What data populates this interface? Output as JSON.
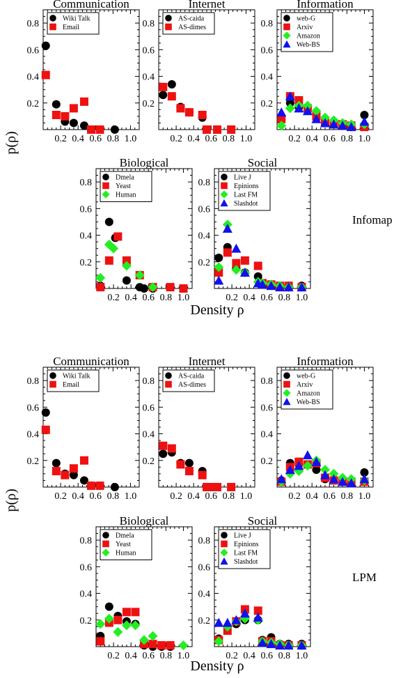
{
  "figure": {
    "y_axis_label": "p(ρ)",
    "x_axis_label": "Density ρ",
    "method_labels": [
      "Infomap",
      "LPM"
    ]
  },
  "colors": {
    "black": "#000000",
    "red": "#ee1111",
    "green": "#22ee22",
    "blue": "#1111ee"
  },
  "chart_data": [
    {
      "type": "scatter",
      "method": "Infomap",
      "title": "Communication",
      "xlim": [
        0,
        1.1
      ],
      "ylim": [
        0,
        0.9
      ],
      "x_ticks": [
        0.2,
        0.4,
        0.6,
        0.8,
        1.0
      ],
      "y_ticks": [
        0.2,
        0.4,
        0.6,
        0.8
      ],
      "series": [
        {
          "name": "Wiki Talk",
          "marker": "circle",
          "color": "#000000",
          "x": [
            0.03,
            0.15,
            0.25,
            0.35,
            0.47,
            0.55,
            0.65,
            0.82
          ],
          "y": [
            0.63,
            0.19,
            0.06,
            0.05,
            0.03,
            0.0,
            0.0,
            0.0
          ]
        },
        {
          "name": "Email",
          "marker": "square",
          "color": "#ee1111",
          "x": [
            0.03,
            0.15,
            0.25,
            0.35,
            0.47,
            0.55,
            0.65
          ],
          "y": [
            0.41,
            0.11,
            0.1,
            0.16,
            0.21,
            0.0,
            0.0
          ]
        }
      ]
    },
    {
      "type": "scatter",
      "method": "Infomap",
      "title": "Internet",
      "xlim": [
        0,
        1.1
      ],
      "ylim": [
        0,
        0.9
      ],
      "x_ticks": [
        0.2,
        0.4,
        0.6,
        0.8,
        1.0
      ],
      "y_ticks": [
        0.2,
        0.4,
        0.6,
        0.8
      ],
      "series": [
        {
          "name": "AS-caida",
          "marker": "circle",
          "color": "#000000",
          "x": [
            0.05,
            0.15,
            0.25,
            0.35,
            0.5
          ],
          "y": [
            0.26,
            0.34,
            0.17,
            0.13,
            0.09
          ]
        },
        {
          "name": "AS-dimes",
          "marker": "square",
          "color": "#ee1111",
          "x": [
            0.05,
            0.15,
            0.25,
            0.35,
            0.5,
            0.55,
            0.67,
            0.83
          ],
          "y": [
            0.32,
            0.25,
            0.16,
            0.13,
            0.11,
            0.0,
            0.0,
            0.0
          ]
        }
      ]
    },
    {
      "type": "scatter",
      "method": "Infomap",
      "title": "Information",
      "xlim": [
        0,
        1.1
      ],
      "ylim": [
        0,
        0.9
      ],
      "x_ticks": [
        0.2,
        0.4,
        0.6,
        0.8,
        1.0
      ],
      "y_ticks": [
        0.2,
        0.4,
        0.6,
        0.8
      ],
      "series": [
        {
          "name": "web-G",
          "marker": "circle",
          "color": "#000000",
          "x": [
            0.05,
            0.15,
            0.25,
            0.35,
            0.45,
            0.55,
            0.65,
            0.75,
            0.85,
            1.0
          ],
          "y": [
            0.1,
            0.2,
            0.17,
            0.16,
            0.12,
            0.07,
            0.05,
            0.03,
            0.02,
            0.11
          ]
        },
        {
          "name": "Arxiv",
          "marker": "square",
          "color": "#ee1111",
          "x": [
            0.05,
            0.15,
            0.25,
            0.35,
            0.45,
            0.55,
            0.65,
            0.75,
            0.85,
            1.0
          ],
          "y": [
            0.08,
            0.25,
            0.22,
            0.16,
            0.1,
            0.05,
            0.04,
            0.04,
            0.03,
            0.02
          ]
        },
        {
          "name": "Amazon",
          "marker": "diamond",
          "color": "#22ee22",
          "x": [
            0.05,
            0.15,
            0.25,
            0.35,
            0.45,
            0.55,
            0.65,
            0.75,
            0.85,
            1.0
          ],
          "y": [
            0.03,
            0.16,
            0.18,
            0.18,
            0.14,
            0.09,
            0.07,
            0.05,
            0.04,
            0.04
          ]
        },
        {
          "name": "Web-BS",
          "marker": "triangle",
          "color": "#1111ee",
          "x": [
            0.05,
            0.15,
            0.25,
            0.35,
            0.45,
            0.55,
            0.65,
            0.75,
            0.85,
            1.0
          ],
          "y": [
            0.13,
            0.25,
            0.16,
            0.14,
            0.08,
            0.05,
            0.04,
            0.03,
            0.02,
            0.06
          ]
        }
      ]
    },
    {
      "type": "scatter",
      "method": "Infomap",
      "title": "Biological",
      "xlim": [
        0,
        1.1
      ],
      "ylim": [
        0,
        0.9
      ],
      "x_ticks": [
        0.2,
        0.4,
        0.6,
        0.8,
        1.0
      ],
      "y_ticks": [
        0.2,
        0.4,
        0.6,
        0.8
      ],
      "series": [
        {
          "name": "Dmela",
          "marker": "circle",
          "color": "#000000",
          "x": [
            0.05,
            0.15,
            0.22,
            0.35,
            0.5,
            0.55,
            0.65
          ],
          "y": [
            0.02,
            0.5,
            0.38,
            0.06,
            0.01,
            0.0,
            0.0
          ]
        },
        {
          "name": "Yeast",
          "marker": "square",
          "color": "#ee1111",
          "x": [
            0.05,
            0.15,
            0.25,
            0.35,
            0.5,
            0.65,
            0.85,
            1.0
          ],
          "y": [
            0.01,
            0.21,
            0.39,
            0.21,
            0.1,
            0.01,
            0.01,
            0.0
          ]
        },
        {
          "name": "Human",
          "marker": "diamond",
          "color": "#22ee22",
          "x": [
            0.05,
            0.15,
            0.2,
            0.35,
            0.5,
            0.65
          ],
          "y": [
            0.08,
            0.33,
            0.3,
            0.17,
            0.1,
            0.01
          ]
        }
      ]
    },
    {
      "type": "scatter",
      "method": "Infomap",
      "title": "Social",
      "xlim": [
        0,
        1.1
      ],
      "ylim": [
        0,
        0.9
      ],
      "x_ticks": [
        0.2,
        0.4,
        0.6,
        0.8,
        1.0
      ],
      "y_ticks": [
        0.2,
        0.4,
        0.6,
        0.8
      ],
      "series": [
        {
          "name": "Live J",
          "marker": "circle",
          "color": "#000000",
          "x": [
            0.05,
            0.15,
            0.25,
            0.35,
            0.5,
            0.55,
            0.65,
            0.75,
            0.85,
            1.0
          ],
          "y": [
            0.23,
            0.31,
            0.15,
            0.12,
            0.09,
            0.04,
            0.03,
            0.02,
            0.02,
            0.02
          ]
        },
        {
          "name": "Epinions",
          "marker": "square",
          "color": "#ee1111",
          "x": [
            0.05,
            0.15,
            0.25,
            0.35,
            0.5,
            0.55,
            0.65,
            0.75,
            0.85,
            1.0
          ],
          "y": [
            0.12,
            0.27,
            0.19,
            0.21,
            0.17,
            0.04,
            0.03,
            0.02,
            0.02,
            0.01
          ]
        },
        {
          "name": "Last FM",
          "marker": "diamond",
          "color": "#22ee22",
          "x": [
            0.05,
            0.15,
            0.25,
            0.35,
            0.5,
            0.55,
            0.65,
            0.75,
            0.85,
            1.0
          ],
          "y": [
            0.16,
            0.48,
            0.14,
            0.12,
            0.05,
            0.04,
            0.03,
            0.02,
            0.01,
            0.01
          ]
        },
        {
          "name": "Slashdot",
          "marker": "triangle",
          "color": "#1111ee",
          "x": [
            0.05,
            0.15,
            0.25,
            0.35,
            0.5,
            0.55,
            0.65,
            0.75,
            0.85,
            1.0
          ],
          "y": [
            0.06,
            0.45,
            0.3,
            0.12,
            0.04,
            0.03,
            0.02,
            0.01,
            0.01,
            0.01
          ]
        }
      ]
    },
    {
      "type": "scatter",
      "method": "LPM",
      "title": "Communication",
      "xlim": [
        0,
        1.1
      ],
      "ylim": [
        0,
        0.9
      ],
      "x_ticks": [
        0.2,
        0.4,
        0.6,
        0.8,
        1.0
      ],
      "y_ticks": [
        0.2,
        0.4,
        0.6,
        0.8
      ],
      "series": [
        {
          "name": "Wiki Talk",
          "marker": "circle",
          "color": "#000000",
          "x": [
            0.03,
            0.15,
            0.25,
            0.35,
            0.47,
            0.55,
            0.65,
            0.82
          ],
          "y": [
            0.56,
            0.18,
            0.1,
            0.09,
            0.05,
            0.01,
            0.01,
            0.0
          ]
        },
        {
          "name": "Email",
          "marker": "square",
          "color": "#ee1111",
          "x": [
            0.03,
            0.15,
            0.25,
            0.35,
            0.47,
            0.55,
            0.65
          ],
          "y": [
            0.43,
            0.12,
            0.09,
            0.14,
            0.2,
            0.01,
            0.01
          ]
        }
      ]
    },
    {
      "type": "scatter",
      "method": "LPM",
      "title": "Internet",
      "xlim": [
        0,
        1.1
      ],
      "ylim": [
        0,
        0.9
      ],
      "x_ticks": [
        0.2,
        0.4,
        0.6,
        0.8,
        1.0
      ],
      "y_ticks": [
        0.2,
        0.4,
        0.6,
        0.8
      ],
      "series": [
        {
          "name": "AS-caida",
          "marker": "circle",
          "color": "#000000",
          "x": [
            0.05,
            0.15,
            0.25,
            0.35,
            0.5,
            0.55,
            0.62,
            0.67
          ],
          "y": [
            0.25,
            0.26,
            0.18,
            0.18,
            0.12,
            0.0,
            0.0,
            0.0
          ]
        },
        {
          "name": "AS-dimes",
          "marker": "square",
          "color": "#ee1111",
          "x": [
            0.05,
            0.15,
            0.25,
            0.35,
            0.5,
            0.55,
            0.6,
            0.67,
            0.83
          ],
          "y": [
            0.31,
            0.29,
            0.17,
            0.12,
            0.09,
            0.0,
            0.0,
            0.0,
            0.0
          ]
        }
      ]
    },
    {
      "type": "scatter",
      "method": "LPM",
      "title": "Information",
      "xlim": [
        0,
        1.1
      ],
      "ylim": [
        0,
        0.9
      ],
      "x_ticks": [
        0.2,
        0.4,
        0.6,
        0.8,
        1.0
      ],
      "y_ticks": [
        0.2,
        0.4,
        0.6,
        0.8
      ],
      "series": [
        {
          "name": "web-G",
          "marker": "circle",
          "color": "#000000",
          "x": [
            0.05,
            0.15,
            0.25,
            0.35,
            0.45,
            0.55,
            0.65,
            0.75,
            0.85,
            1.0
          ],
          "y": [
            0.05,
            0.18,
            0.17,
            0.17,
            0.13,
            0.06,
            0.05,
            0.04,
            0.03,
            0.11
          ]
        },
        {
          "name": "Arxiv",
          "marker": "square",
          "color": "#ee1111",
          "x": [
            0.05,
            0.15,
            0.25,
            0.35,
            0.45,
            0.55,
            0.65,
            0.75,
            0.85,
            1.0
          ],
          "y": [
            0.04,
            0.15,
            0.19,
            0.17,
            0.18,
            0.07,
            0.05,
            0.04,
            0.04,
            0.04
          ]
        },
        {
          "name": "Amazon",
          "marker": "diamond",
          "color": "#22ee22",
          "x": [
            0.05,
            0.15,
            0.25,
            0.35,
            0.45,
            0.55,
            0.65,
            0.75,
            0.85,
            1.0
          ],
          "y": [
            0.04,
            0.1,
            0.12,
            0.16,
            0.2,
            0.13,
            0.1,
            0.07,
            0.06,
            0.05
          ]
        },
        {
          "name": "Web-BS",
          "marker": "triangle",
          "color": "#1111ee",
          "x": [
            0.05,
            0.15,
            0.25,
            0.35,
            0.45,
            0.55,
            0.65,
            0.75,
            0.85,
            1.0
          ],
          "y": [
            0.06,
            0.13,
            0.16,
            0.24,
            0.19,
            0.09,
            0.06,
            0.04,
            0.03,
            0.06
          ]
        }
      ]
    },
    {
      "type": "scatter",
      "method": "LPM",
      "title": "Biological",
      "xlim": [
        0,
        1.1
      ],
      "ylim": [
        0,
        0.9
      ],
      "x_ticks": [
        0.2,
        0.4,
        0.6,
        0.8,
        1.0
      ],
      "y_ticks": [
        0.2,
        0.4,
        0.6,
        0.8
      ],
      "series": [
        {
          "name": "Dmela",
          "marker": "circle",
          "color": "#000000",
          "x": [
            0.05,
            0.15,
            0.25,
            0.35,
            0.45,
            0.55,
            0.65,
            0.75,
            0.85
          ],
          "y": [
            0.08,
            0.3,
            0.23,
            0.19,
            0.17,
            0.01,
            0.0,
            0.0,
            0.0
          ]
        },
        {
          "name": "Yeast",
          "marker": "square",
          "color": "#ee1111",
          "x": [
            0.05,
            0.15,
            0.25,
            0.35,
            0.45,
            0.55,
            0.65,
            0.75,
            0.85
          ],
          "y": [
            0.04,
            0.18,
            0.2,
            0.26,
            0.26,
            0.02,
            0.02,
            0.01,
            0.01
          ]
        },
        {
          "name": "Human",
          "marker": "diamond",
          "color": "#22ee22",
          "x": [
            0.05,
            0.15,
            0.25,
            0.35,
            0.45,
            0.55,
            0.65,
            1.0
          ],
          "y": [
            0.17,
            0.21,
            0.11,
            0.16,
            0.16,
            0.05,
            0.08,
            0.01
          ]
        }
      ]
    },
    {
      "type": "scatter",
      "method": "LPM",
      "title": "Social",
      "xlim": [
        0,
        1.1
      ],
      "ylim": [
        0,
        0.9
      ],
      "x_ticks": [
        0.2,
        0.4,
        0.6,
        0.8,
        1.0
      ],
      "y_ticks": [
        0.2,
        0.4,
        0.6,
        0.8
      ],
      "series": [
        {
          "name": "Live J",
          "marker": "circle",
          "color": "#000000",
          "x": [
            0.05,
            0.15,
            0.25,
            0.35,
            0.5,
            0.55,
            0.65,
            0.75,
            0.85,
            1.0
          ],
          "y": [
            0.06,
            0.15,
            0.17,
            0.2,
            0.2,
            0.05,
            0.07,
            0.02,
            0.02,
            0.02
          ]
        },
        {
          "name": "Epinions",
          "marker": "square",
          "color": "#ee1111",
          "x": [
            0.05,
            0.15,
            0.25,
            0.35,
            0.5,
            0.55,
            0.65,
            0.75,
            0.85,
            1.0
          ],
          "y": [
            0.05,
            0.12,
            0.19,
            0.28,
            0.27,
            0.04,
            0.04,
            0.01,
            0.01,
            0.01
          ]
        },
        {
          "name": "Last FM",
          "marker": "diamond",
          "color": "#22ee22",
          "x": [
            0.05,
            0.15,
            0.25,
            0.35,
            0.5,
            0.55,
            0.65,
            0.75,
            0.85,
            1.0
          ],
          "y": [
            0.04,
            0.15,
            0.19,
            0.21,
            0.2,
            0.04,
            0.03,
            0.02,
            0.01,
            0.01
          ]
        },
        {
          "name": "Slashdot",
          "marker": "triangle",
          "color": "#1111ee",
          "x": [
            0.05,
            0.15,
            0.25,
            0.35,
            0.5,
            0.55,
            0.65,
            0.75,
            0.85,
            1.0
          ],
          "y": [
            0.18,
            0.18,
            0.2,
            0.25,
            0.22,
            0.03,
            0.02,
            0.01,
            0.01,
            0.01
          ]
        }
      ]
    }
  ]
}
